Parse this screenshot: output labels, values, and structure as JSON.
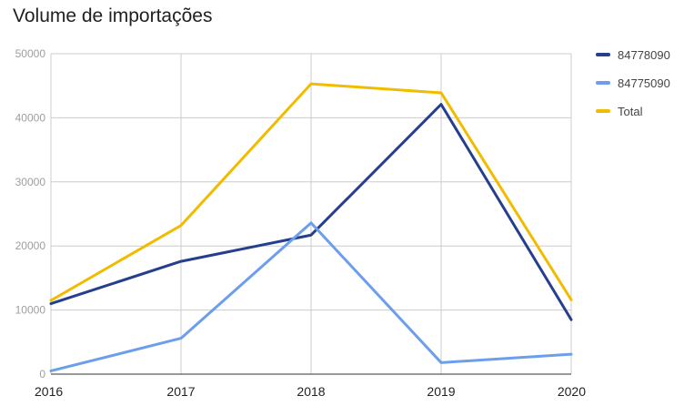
{
  "chart_data": {
    "type": "line",
    "title": "Volume de importações",
    "categories": [
      "2016",
      "2017",
      "2018",
      "2019",
      "2020"
    ],
    "series": [
      {
        "name": "84778090",
        "color": "#253f8e",
        "values": [
          11000,
          17600,
          21700,
          42100,
          8500
        ]
      },
      {
        "name": "84775090",
        "color": "#6d9eeb",
        "values": [
          500,
          5600,
          23600,
          1800,
          3100
        ]
      },
      {
        "name": "Total",
        "color": "#f1bc00",
        "values": [
          11500,
          23200,
          45300,
          43900,
          11600
        ]
      }
    ],
    "ylim": [
      0,
      50000
    ],
    "yticks": [
      0,
      10000,
      20000,
      30000,
      40000,
      50000
    ],
    "grid": true,
    "legend_position": "right"
  }
}
